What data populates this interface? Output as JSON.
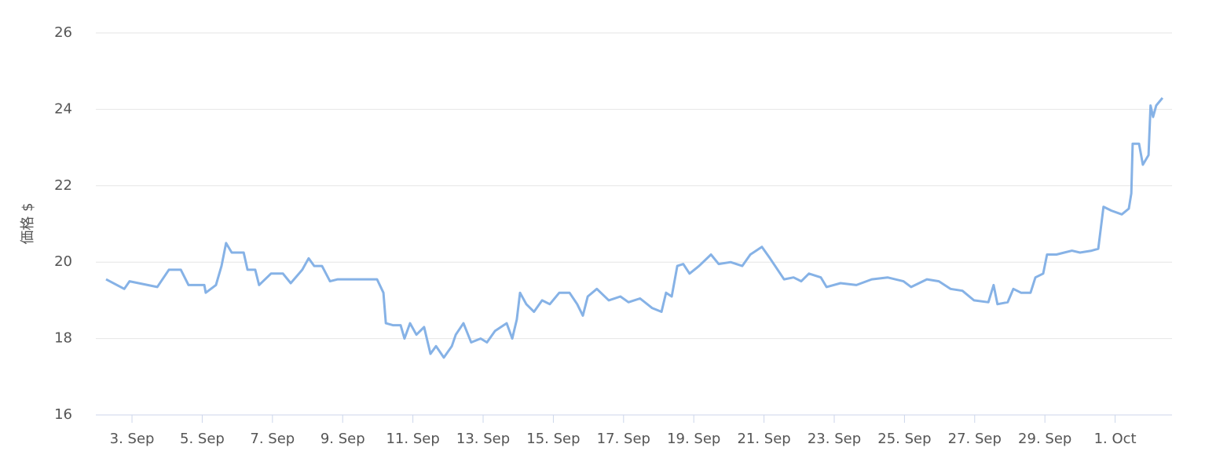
{
  "chart_data": {
    "type": "line",
    "y_label": "価格 $",
    "x": [
      2.26,
      2.78,
      2.93,
      3.72,
      4.05,
      4.39,
      4.61,
      5.06,
      5.1,
      5.39,
      5.55,
      5.68,
      5.84,
      6.18,
      6.29,
      6.51,
      6.62,
      6.96,
      7.3,
      7.52,
      7.85,
      8.03,
      8.19,
      8.41,
      8.64,
      8.86,
      9.98,
      10.16,
      10.23,
      10.43,
      10.65,
      10.76,
      10.92,
      11.1,
      11.32,
      11.5,
      11.66,
      11.88,
      12.11,
      12.22,
      12.44,
      12.66,
      12.93,
      13.11,
      13.34,
      13.67,
      13.83,
      13.96,
      14.05,
      14.23,
      14.45,
      14.68,
      14.9,
      15.17,
      15.46,
      15.68,
      15.84,
      15.98,
      16.24,
      16.58,
      16.91,
      17.14,
      17.47,
      17.81,
      18.08,
      18.21,
      18.37,
      18.53,
      18.7,
      18.88,
      19.15,
      19.49,
      19.71,
      20.05,
      20.38,
      20.61,
      20.94,
      21.17,
      21.39,
      21.57,
      21.84,
      22.06,
      22.28,
      22.62,
      22.78,
      23.18,
      23.63,
      24.07,
      24.52,
      24.97,
      25.19,
      25.64,
      25.98,
      26.31,
      26.65,
      26.98,
      27.39,
      27.54,
      27.65,
      27.94,
      28.1,
      28.32,
      28.59,
      28.73,
      28.95,
      29.06,
      29.33,
      29.55,
      29.77,
      30.0,
      30.33,
      30.52,
      30.67,
      30.89,
      31.19,
      31.39,
      31.46,
      31.5,
      31.68,
      31.79,
      31.95,
      32.01,
      32.08,
      32.17,
      32.35
    ],
    "series": [
      {
        "color": "#86b2e6",
        "values": [
          19.55,
          19.3,
          19.5,
          19.35,
          19.8,
          19.8,
          19.4,
          19.4,
          19.2,
          19.4,
          19.9,
          20.5,
          20.25,
          20.25,
          19.8,
          19.8,
          19.4,
          19.7,
          19.7,
          19.45,
          19.8,
          20.1,
          19.9,
          19.9,
          19.5,
          19.55,
          19.55,
          19.2,
          18.4,
          18.35,
          18.35,
          18.0,
          18.4,
          18.1,
          18.3,
          17.6,
          17.8,
          17.5,
          17.8,
          18.1,
          18.4,
          17.9,
          18.0,
          17.9,
          18.2,
          18.4,
          18.0,
          18.5,
          19.2,
          18.9,
          18.7,
          19.0,
          18.9,
          19.2,
          19.2,
          18.9,
          18.6,
          19.1,
          19.3,
          19.0,
          19.1,
          18.95,
          19.05,
          18.8,
          18.7,
          19.2,
          19.1,
          19.9,
          19.95,
          19.7,
          19.9,
          20.2,
          19.95,
          20.0,
          19.9,
          20.2,
          20.4,
          20.1,
          19.8,
          19.55,
          19.6,
          19.5,
          19.7,
          19.6,
          19.35,
          19.45,
          19.4,
          19.55,
          19.6,
          19.5,
          19.35,
          19.55,
          19.5,
          19.3,
          19.25,
          19.0,
          18.95,
          19.4,
          18.9,
          18.95,
          19.3,
          19.2,
          19.2,
          19.6,
          19.7,
          20.2,
          20.2,
          20.25,
          20.3,
          20.25,
          20.3,
          20.35,
          21.45,
          21.35,
          21.25,
          21.4,
          21.8,
          23.1,
          23.1,
          22.55,
          22.8,
          24.1,
          23.8,
          24.1,
          24.3
        ]
      }
    ],
    "xlim": [
      1.97,
      32.62
    ],
    "xticks": [
      {
        "value": 3,
        "label": "3. Sep"
      },
      {
        "value": 5,
        "label": "5. Sep"
      },
      {
        "value": 7,
        "label": "7. Sep"
      },
      {
        "value": 9,
        "label": "9. Sep"
      },
      {
        "value": 11,
        "label": "11. Sep"
      },
      {
        "value": 13,
        "label": "13. Sep"
      },
      {
        "value": 15,
        "label": "15. Sep"
      },
      {
        "value": 17,
        "label": "17. Sep"
      },
      {
        "value": 19,
        "label": "19. Sep"
      },
      {
        "value": 21,
        "label": "21. Sep"
      },
      {
        "value": 23,
        "label": "23. Sep"
      },
      {
        "value": 25,
        "label": "25. Sep"
      },
      {
        "value": 27,
        "label": "27. Sep"
      },
      {
        "value": 29,
        "label": "29. Sep"
      },
      {
        "value": 31,
        "label": "1. Oct"
      }
    ],
    "ylim": [
      16,
      26
    ],
    "yticks": [
      16,
      18,
      20,
      22,
      24,
      26
    ],
    "grid": true
  }
}
